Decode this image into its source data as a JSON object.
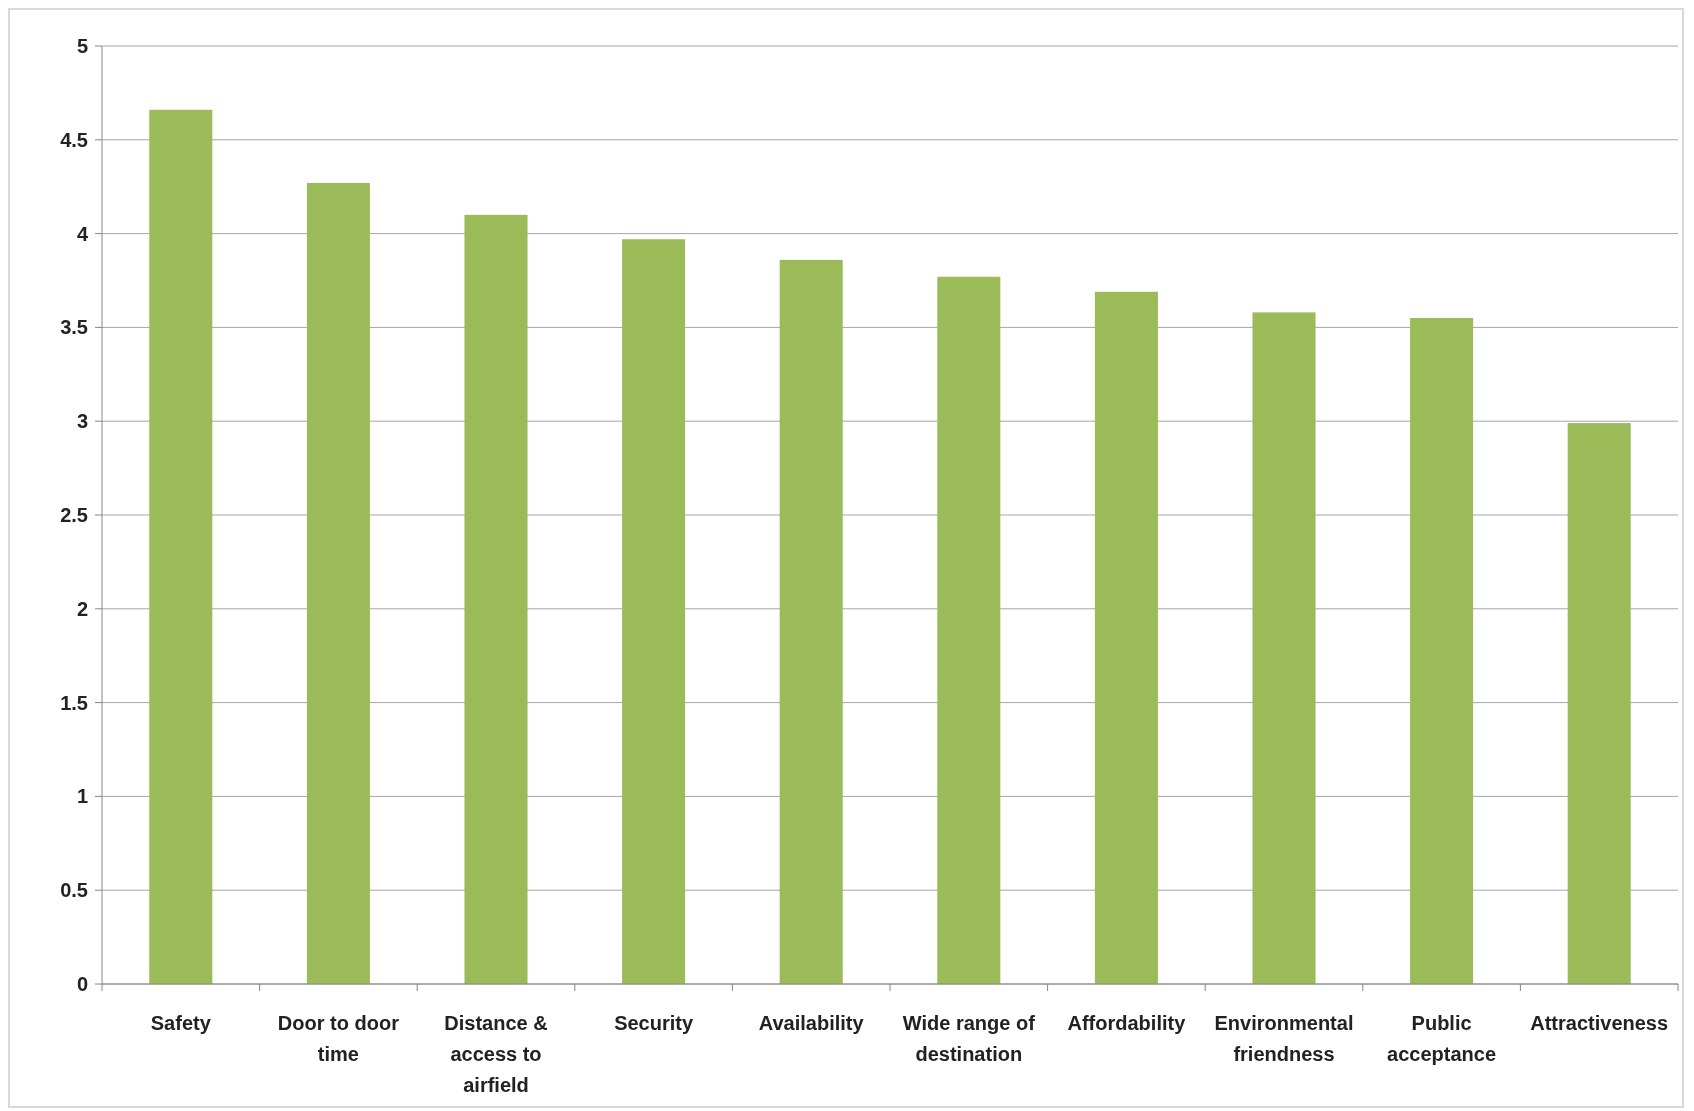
{
  "chart_data": {
    "type": "bar",
    "categories": [
      "Safety",
      "Door to door time",
      "Distance & access to airfield",
      "Security",
      "Availability",
      "Wide range of destination",
      "Affordability",
      "Environmental friendness",
      "Public acceptance",
      "Attractiveness"
    ],
    "values": [
      4.66,
      4.27,
      4.1,
      3.97,
      3.86,
      3.77,
      3.69,
      3.58,
      3.55,
      2.99
    ],
    "color": "#9bbb59",
    "ylim": [
      0,
      5
    ],
    "yticks": [
      0,
      0.5,
      1,
      1.5,
      2,
      2.5,
      3,
      3.5,
      4,
      4.5,
      5
    ],
    "grid": "y"
  }
}
